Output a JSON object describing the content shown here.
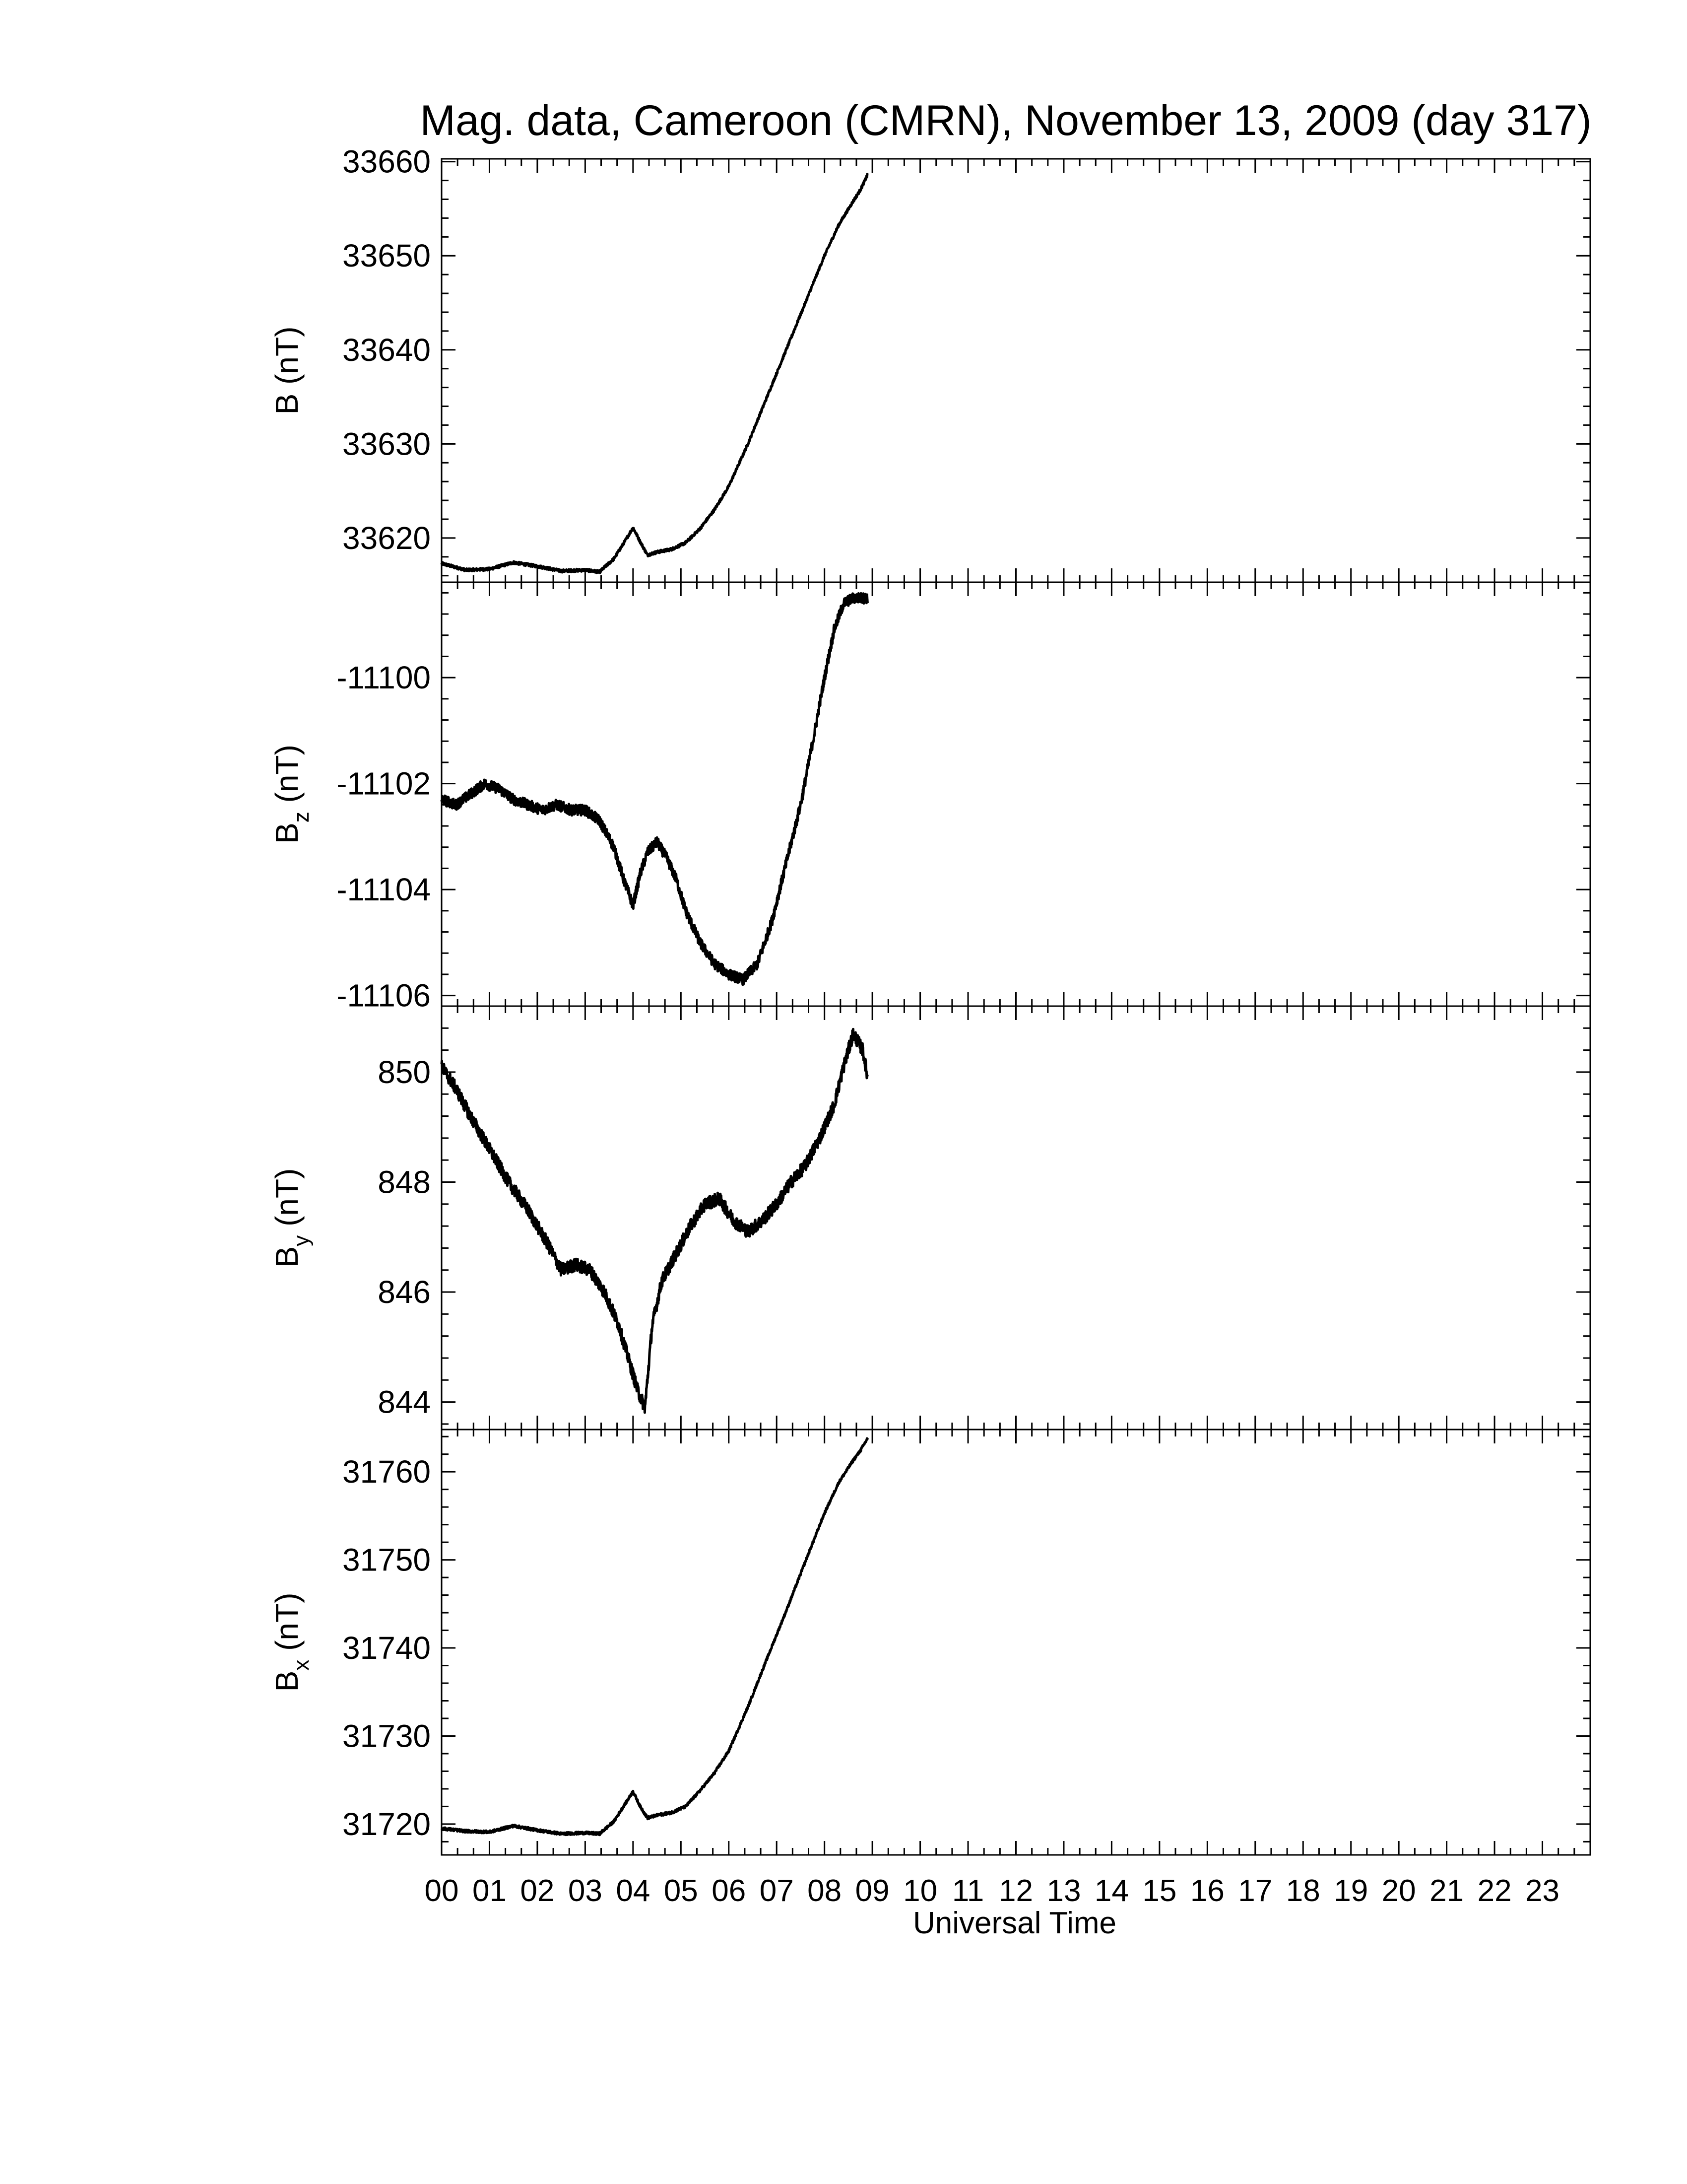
{
  "title": "Mag. data, Cameroon (CMRN), November 13, 2009 (day 317)",
  "chart_data": [
    {
      "type": "line",
      "ylabel": "B (nT)",
      "ylabel_main": "B",
      "ylabel_sub": "",
      "ylabel_unit": " (nT)",
      "ylim": [
        33615.3,
        33660.3
      ],
      "yticks": [
        33620,
        33630,
        33640,
        33650,
        33660
      ],
      "ytick_labels": [
        "33620",
        "33630",
        "33640",
        "33650",
        "33660"
      ],
      "x": [
        0,
        0.5,
        1,
        1.5,
        2,
        2.5,
        3,
        3.3,
        3.6,
        3.8,
        4.0,
        4.15,
        4.3,
        4.5,
        4.8,
        5.1,
        5.4,
        5.7,
        6.0,
        6.4,
        6.8,
        7.2,
        7.6,
        8.0,
        8.3,
        8.6,
        8.75,
        8.9
      ],
      "values": [
        33617.3,
        33616.6,
        33616.7,
        33617.4,
        33617.0,
        33616.5,
        33616.6,
        33616.4,
        33617.8,
        33619.4,
        33621.1,
        33619.6,
        33618.2,
        33618.5,
        33618.8,
        33619.5,
        33621.0,
        33623.0,
        33625.5,
        33630.0,
        33635.0,
        33640.0,
        33645.0,
        33650.0,
        33653.3,
        33655.8,
        33657.0,
        33658.6
      ],
      "noise": 0.15
    },
    {
      "type": "line",
      "ylabel": "Bz (nT)",
      "ylabel_main": "B",
      "ylabel_sub": "z",
      "ylabel_unit": " (nT)",
      "ylim": [
        -11106.2,
        -11098.2
      ],
      "yticks": [
        -11106,
        -11104,
        -11102,
        -11100
      ],
      "ytick_labels": [
        "-11106",
        "-11104",
        "-11102",
        "-11100"
      ],
      "x": [
        0,
        0.3,
        0.6,
        0.9,
        1.2,
        1.5,
        1.8,
        2.1,
        2.4,
        2.7,
        3.0,
        3.3,
        3.6,
        3.8,
        4.0,
        4.15,
        4.3,
        4.5,
        4.7,
        4.9,
        5.1,
        5.4,
        5.7,
        6.0,
        6.3,
        6.6,
        6.9,
        7.2,
        7.5,
        7.8,
        8.0,
        8.2,
        8.4,
        8.6,
        8.9
      ],
      "values": [
        -11102.3,
        -11102.4,
        -11102.2,
        -11102.0,
        -11102.1,
        -11102.3,
        -11102.4,
        -11102.5,
        -11102.4,
        -11102.5,
        -11102.5,
        -11102.7,
        -11103.2,
        -11103.8,
        -11104.3,
        -11103.7,
        -11103.3,
        -11103.1,
        -11103.4,
        -11103.8,
        -11104.4,
        -11105.0,
        -11105.4,
        -11105.6,
        -11105.7,
        -11105.4,
        -11104.6,
        -11103.5,
        -11102.4,
        -11101.0,
        -11100.0,
        -11099.1,
        -11098.6,
        -11098.5,
        -11098.5
      ],
      "noise": 0.1
    },
    {
      "type": "line",
      "ylabel": "By (nT)",
      "ylabel_main": "B",
      "ylabel_sub": "y",
      "ylabel_unit": " (nT)",
      "ylim": [
        843.5,
        851.2
      ],
      "yticks": [
        844,
        846,
        848,
        850
      ],
      "ytick_labels": [
        "844",
        "846",
        "848",
        "850"
      ],
      "x": [
        0,
        0.3,
        0.6,
        1.0,
        1.4,
        1.8,
        2.2,
        2.5,
        2.8,
        3.1,
        3.4,
        3.7,
        3.9,
        4.1,
        4.25,
        4.4,
        4.6,
        4.9,
        5.2,
        5.5,
        5.8,
        6.1,
        6.4,
        6.7,
        7.0,
        7.3,
        7.6,
        7.9,
        8.2,
        8.4,
        8.6,
        8.8,
        8.9
      ],
      "values": [
        850.1,
        849.7,
        849.2,
        848.6,
        848.0,
        847.5,
        846.9,
        846.4,
        846.5,
        846.4,
        846.0,
        845.4,
        844.8,
        844.2,
        843.9,
        845.4,
        846.2,
        846.7,
        847.2,
        847.6,
        847.7,
        847.3,
        847.1,
        847.3,
        847.6,
        848.0,
        848.3,
        848.8,
        849.4,
        850.1,
        850.7,
        850.4,
        849.9
      ],
      "noise": 0.12
    },
    {
      "type": "line",
      "ylabel": "Bx (nT)",
      "ylabel_main": "B",
      "ylabel_sub": "x",
      "ylabel_unit": " (nT)",
      "ylim": [
        31716.5,
        31764.8
      ],
      "yticks": [
        31720,
        31730,
        31740,
        31750,
        31760
      ],
      "ytick_labels": [
        "31720",
        "31730",
        "31740",
        "31750",
        "31760"
      ],
      "x": [
        0,
        0.5,
        1,
        1.5,
        2,
        2.5,
        3,
        3.3,
        3.6,
        3.8,
        4.0,
        4.15,
        4.3,
        4.5,
        4.8,
        5.1,
        5.4,
        5.7,
        6.0,
        6.4,
        6.8,
        7.2,
        7.6,
        8.0,
        8.3,
        8.6,
        8.75,
        8.9
      ],
      "values": [
        31719.5,
        31719.2,
        31719.1,
        31719.8,
        31719.3,
        31718.9,
        31719.0,
        31718.9,
        31720.3,
        31722.0,
        31723.7,
        31722.0,
        31720.7,
        31721.0,
        31721.3,
        31722.0,
        31723.8,
        31725.8,
        31728.3,
        31733.3,
        31738.8,
        31744.2,
        31749.8,
        31755.3,
        31758.8,
        31761.3,
        31762.4,
        31763.8
      ],
      "noise": 0.15
    }
  ],
  "x_axis": {
    "label": "Universal Time",
    "xlim": [
      0,
      24
    ],
    "tick_labels": [
      "00",
      "01",
      "02",
      "03",
      "04",
      "05",
      "06",
      "07",
      "08",
      "09",
      "10",
      "11",
      "12",
      "13",
      "14",
      "15",
      "16",
      "17",
      "18",
      "19",
      "20",
      "21",
      "22",
      "23"
    ]
  }
}
